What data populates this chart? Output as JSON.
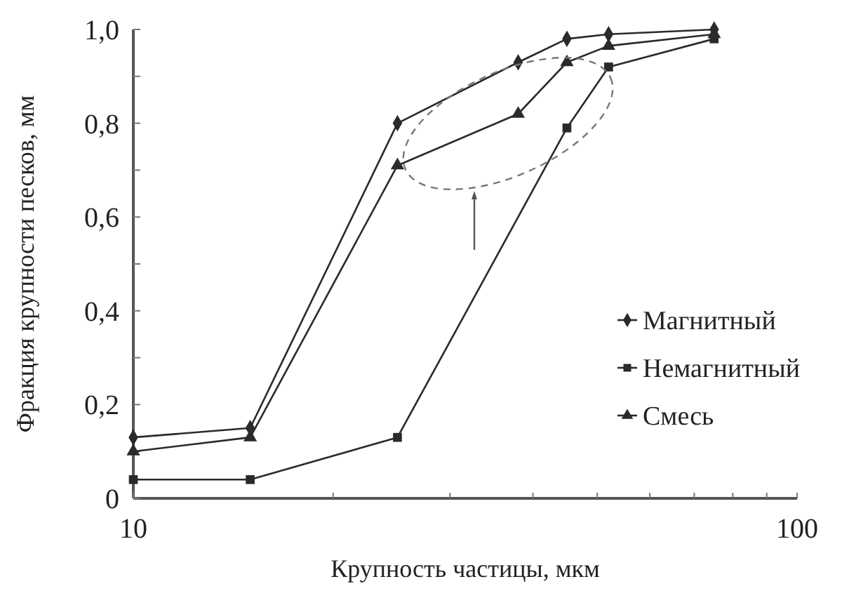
{
  "chart_data": {
    "type": "line",
    "xlabel": "Крупность частицы, мкм",
    "ylabel": "Фракция крупности песков, мм",
    "log": "x",
    "xlim": [
      10,
      100
    ],
    "xticks": [
      10,
      {
        "value": 20,
        "label": null
      },
      {
        "value": 30,
        "label": null
      },
      {
        "value": 40,
        "label": null
      },
      {
        "value": 50,
        "label": null
      },
      {
        "value": 60,
        "label": null
      },
      {
        "value": 70,
        "label": null
      },
      {
        "value": 80,
        "label": null
      },
      {
        "value": 90,
        "label": null
      },
      100
    ],
    "ylim": [
      0,
      1
    ],
    "yticks": [
      {
        "value": 0,
        "label": "0"
      },
      {
        "value": 0.1,
        "label": null
      },
      {
        "value": 0.2,
        "label": "0,2"
      },
      {
        "value": 0.3,
        "label": null
      },
      {
        "value": 0.4,
        "label": "0,4"
      },
      {
        "value": 0.5,
        "label": null
      },
      {
        "value": 0.6,
        "label": "0,6"
      },
      {
        "value": 0.7,
        "label": null
      },
      {
        "value": 0.8,
        "label": "0,8"
      },
      {
        "value": 0.9,
        "label": null
      },
      {
        "value": 1,
        "label": "1,0"
      }
    ],
    "grid": false,
    "legend": "right",
    "line_style": "solid",
    "series": [
      {
        "name": "Магнитный",
        "color": "#2a2a2a",
        "marker": "diamond",
        "x": [
          10,
          15,
          25,
          38,
          45,
          52,
          75
        ],
        "values": [
          0.13,
          0.15,
          0.8,
          0.93,
          0.98,
          0.99,
          1.0
        ]
      },
      {
        "name": "Немагнитный",
        "color": "#2a2a2a",
        "marker": "square",
        "x": [
          10,
          15,
          25,
          45,
          52,
          75
        ],
        "values": [
          0.04,
          0.04,
          0.13,
          0.79,
          0.92,
          0.98
        ]
      },
      {
        "name": "Смесь",
        "color": "#2a2a2a",
        "marker": "triangle",
        "x": [
          10,
          15,
          25,
          38,
          45,
          52,
          75
        ],
        "values": [
          0.1,
          0.13,
          0.71,
          0.82,
          0.93,
          0.965,
          0.99
        ]
      }
    ]
  }
}
